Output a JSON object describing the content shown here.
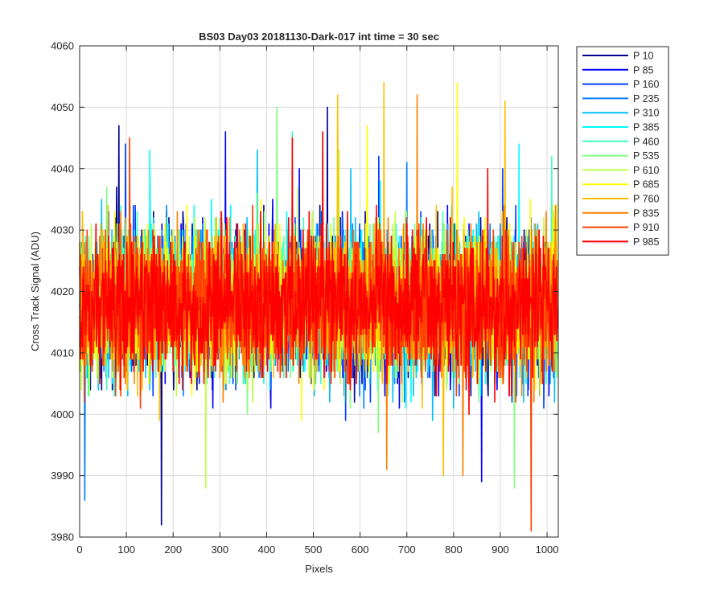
{
  "chart_data": {
    "type": "line",
    "title": "BS03 Day03 20181130-Dark-017 int time = 30 sec",
    "xlabel": "Pixels",
    "ylabel": "Cross Track Signal (ADU)",
    "xlim": [
      0,
      1024
    ],
    "ylim": [
      3980,
      4060
    ],
    "xticks": [
      0,
      100,
      200,
      300,
      400,
      500,
      600,
      700,
      800,
      900,
      1000
    ],
    "yticks": [
      3980,
      3990,
      4000,
      4010,
      4020,
      4030,
      4040,
      4050,
      4060
    ],
    "grid": true,
    "legend_position": "outside-top-right",
    "points_per_series": 1024,
    "signal_mean": 4018,
    "signal_spread_approx": 8,
    "series": [
      {
        "name": "P 10",
        "color": "#00008f",
        "spikes": [
          [
            175,
            3982
          ],
          [
            84,
            4047
          ],
          [
            530,
            4050
          ]
        ]
      },
      {
        "name": "P 85",
        "color": "#0000ff",
        "spikes": [
          [
            312,
            4046
          ],
          [
            470,
            4040
          ],
          [
            860,
            3989
          ]
        ]
      },
      {
        "name": "P 160",
        "color": "#0040ff",
        "spikes": [
          [
            98,
            4044
          ],
          [
            640,
            4042
          ],
          [
            905,
            4040
          ]
        ]
      },
      {
        "name": "P 235",
        "color": "#0080ff",
        "spikes": [
          [
            11,
            3986
          ],
          [
            700,
            4041
          ]
        ]
      },
      {
        "name": "P 310",
        "color": "#00bfff",
        "spikes": [
          [
            380,
            4043
          ],
          [
            580,
            4040
          ]
        ]
      },
      {
        "name": "P 385",
        "color": "#00ffff",
        "spikes": [
          [
            150,
            4043
          ],
          [
            940,
            4044
          ]
        ]
      },
      {
        "name": "P 460",
        "color": "#40ffbf",
        "spikes": [
          [
            455,
            4046
          ],
          [
            1010,
            4042
          ]
        ]
      },
      {
        "name": "P 535",
        "color": "#80ff80",
        "spikes": [
          [
            422,
            4050
          ],
          [
            930,
            3988
          ]
        ]
      },
      {
        "name": "P 610",
        "color": "#bfff40",
        "spikes": [
          [
            270,
            3988
          ],
          [
            555,
            4043
          ]
        ]
      },
      {
        "name": "P 685",
        "color": "#ffff00",
        "spikes": [
          [
            808,
            4054
          ],
          [
            615,
            4047
          ]
        ]
      },
      {
        "name": "P 760",
        "color": "#ffbf00",
        "spikes": [
          [
            552,
            4052
          ],
          [
            651,
            4054
          ],
          [
            778,
            3990
          ],
          [
            910,
            4051
          ]
        ]
      },
      {
        "name": "P 835",
        "color": "#ff8000",
        "spikes": [
          [
            722,
            4052
          ],
          [
            657,
            3991
          ],
          [
            820,
            3990
          ]
        ]
      },
      {
        "name": "P 910",
        "color": "#ff4000",
        "spikes": [
          [
            966,
            3981
          ],
          [
            107,
            4045
          ]
        ]
      },
      {
        "name": "P 985",
        "color": "#ff0000",
        "spikes": [
          [
            455,
            4045
          ],
          [
            520,
            4046
          ],
          [
            873,
            4040
          ]
        ]
      }
    ]
  }
}
